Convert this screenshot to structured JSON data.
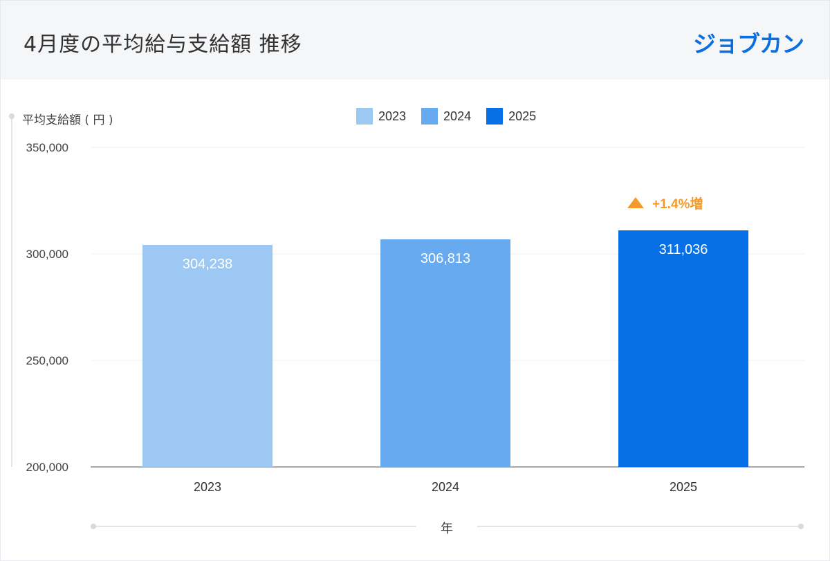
{
  "header": {
    "title": "4月度の平均給与支給額 推移",
    "logo_text": "ジョブカン"
  },
  "chart_data": {
    "type": "bar",
    "categories": [
      "2023",
      "2024",
      "2025"
    ],
    "values": [
      304238,
      306813,
      311036
    ],
    "value_labels": [
      "304,238",
      "306,813",
      "311,036"
    ],
    "colors": [
      "#9dc8f4",
      "#68aaef",
      "#0870e6"
    ],
    "ylabel": "平均支給額 ( 円 )",
    "xlabel": "年",
    "ylim": [
      200000,
      350000
    ],
    "yticks": [
      200000,
      250000,
      300000,
      350000
    ],
    "ytick_labels": [
      "200,000",
      "250,000",
      "300,000",
      "350,000"
    ],
    "legend": [
      "2023",
      "2024",
      "2025"
    ],
    "legend_position": "top-center",
    "grid": true,
    "annotation": {
      "category": "2025",
      "text": "+1.4%増",
      "color": "#f39a2b"
    }
  }
}
